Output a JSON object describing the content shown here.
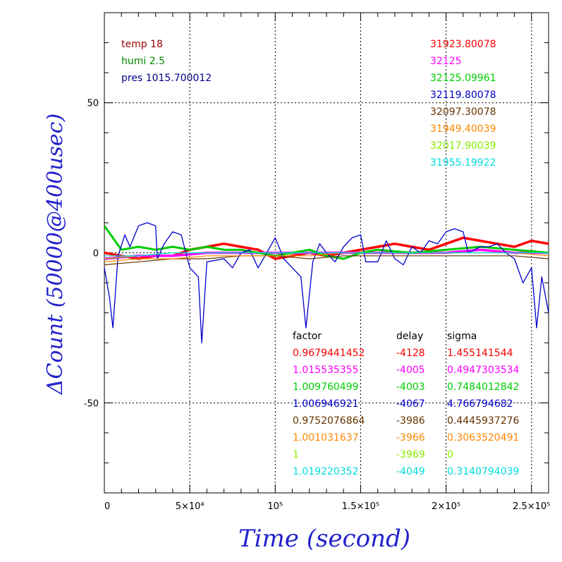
{
  "chart_data": {
    "type": "line",
    "xlabel": "Time (second)",
    "ylabel": "ΔCount (50000@400usec)",
    "xlim": [
      0,
      260000
    ],
    "ylim": [
      -80,
      80
    ],
    "x_ticks": [
      {
        "value": 0,
        "label": "0"
      },
      {
        "value": 50000,
        "label": "5×10⁴"
      },
      {
        "value": 100000,
        "label": "10⁵"
      },
      {
        "value": 150000,
        "label": "1.5×10⁵"
      },
      {
        "value": 200000,
        "label": "2×10⁵"
      },
      {
        "value": 250000,
        "label": "2.5×10⁵"
      }
    ],
    "y_ticks": [
      {
        "value": 50,
        "label": "50"
      },
      {
        "value": 0,
        "label": "0"
      },
      {
        "value": -50,
        "label": "-50"
      }
    ],
    "grid": true,
    "env": [
      {
        "text": "temp 18",
        "color": "#990000"
      },
      {
        "text": "humi 2.5",
        "color": "#008800"
      },
      {
        "text": "pres 1015.700012",
        "color": "#000088"
      }
    ],
    "series": [
      {
        "name": "31923.80078",
        "color": "#ff0000",
        "factor": "0.9679441452",
        "delay": "-4128",
        "sigma": "1.455141544",
        "values": [
          [
            0,
            0
          ],
          [
            10000,
            -1
          ],
          [
            20000,
            -2
          ],
          [
            30000,
            -1
          ],
          [
            40000,
            -1
          ],
          [
            50000,
            1
          ],
          [
            60000,
            2
          ],
          [
            70000,
            3
          ],
          [
            80000,
            2
          ],
          [
            90000,
            1
          ],
          [
            100000,
            -2
          ],
          [
            110000,
            -1
          ],
          [
            120000,
            0
          ],
          [
            130000,
            -1
          ],
          [
            140000,
            0
          ],
          [
            150000,
            1
          ],
          [
            160000,
            2
          ],
          [
            170000,
            3
          ],
          [
            180000,
            2
          ],
          [
            190000,
            1
          ],
          [
            200000,
            3
          ],
          [
            210000,
            5
          ],
          [
            220000,
            4
          ],
          [
            230000,
            3
          ],
          [
            240000,
            2
          ],
          [
            250000,
            4
          ],
          [
            260000,
            3
          ]
        ]
      },
      {
        "name": "32125",
        "color": "#ff00ff",
        "factor": "1.015535355",
        "delay": "-4005",
        "sigma": "0.4947303534",
        "values": [
          [
            0,
            -2
          ],
          [
            20000,
            -1
          ],
          [
            40000,
            -1
          ],
          [
            60000,
            0
          ],
          [
            80000,
            0
          ],
          [
            100000,
            0
          ],
          [
            120000,
            0
          ],
          [
            140000,
            0
          ],
          [
            160000,
            0
          ],
          [
            180000,
            0
          ],
          [
            200000,
            0
          ],
          [
            220000,
            1
          ],
          [
            240000,
            0
          ],
          [
            260000,
            0
          ]
        ]
      },
      {
        "name": "32125.09961",
        "color": "#00cc00",
        "factor": "1.009760499",
        "delay": "-4003",
        "sigma": "0.7484012842",
        "values": [
          [
            0,
            9
          ],
          [
            10000,
            1
          ],
          [
            20000,
            2
          ],
          [
            30000,
            1
          ],
          [
            40000,
            2
          ],
          [
            50000,
            1
          ],
          [
            60000,
            2
          ],
          [
            70000,
            1
          ],
          [
            80000,
            1
          ],
          [
            90000,
            0
          ],
          [
            100000,
            -1
          ],
          [
            110000,
            0
          ],
          [
            120000,
            1
          ],
          [
            130000,
            -1
          ],
          [
            140000,
            -2
          ],
          [
            150000,
            0
          ],
          [
            160000,
            1
          ],
          [
            180000,
            0
          ],
          [
            200000,
            1
          ],
          [
            220000,
            2
          ],
          [
            240000,
            1
          ],
          [
            260000,
            0
          ]
        ]
      },
      {
        "name": "32119.80078",
        "color": "#0000cc",
        "factor": "1.006946921",
        "delay": "-4067",
        "sigma": "4.766794682",
        "values": [
          [
            0,
            -5
          ],
          [
            3000,
            -15
          ],
          [
            5000,
            -25
          ],
          [
            8000,
            -1
          ],
          [
            12000,
            6
          ],
          [
            15000,
            2
          ],
          [
            20000,
            9
          ],
          [
            25000,
            10
          ],
          [
            30000,
            9
          ],
          [
            31000,
            -2
          ],
          [
            35000,
            3
          ],
          [
            40000,
            7
          ],
          [
            45000,
            6
          ],
          [
            50000,
            -5
          ],
          [
            55000,
            -8
          ],
          [
            57000,
            -30
          ],
          [
            60000,
            -3
          ],
          [
            70000,
            -2
          ],
          [
            75000,
            -5
          ],
          [
            80000,
            0
          ],
          [
            85000,
            1
          ],
          [
            90000,
            -5
          ],
          [
            95000,
            0
          ],
          [
            100000,
            5
          ],
          [
            105000,
            -2
          ],
          [
            110000,
            -5
          ],
          [
            115000,
            -8
          ],
          [
            118000,
            -25
          ],
          [
            122000,
            -3
          ],
          [
            126000,
            3
          ],
          [
            130000,
            0
          ],
          [
            135000,
            -3
          ],
          [
            140000,
            2
          ],
          [
            145000,
            5
          ],
          [
            150000,
            6
          ],
          [
            153000,
            -3
          ],
          [
            160000,
            -3
          ],
          [
            165000,
            4
          ],
          [
            170000,
            -2
          ],
          [
            175000,
            -4
          ],
          [
            180000,
            2
          ],
          [
            185000,
            0
          ],
          [
            190000,
            4
          ],
          [
            195000,
            3
          ],
          [
            200000,
            7
          ],
          [
            205000,
            8
          ],
          [
            210000,
            7
          ],
          [
            213000,
            0
          ],
          [
            220000,
            2
          ],
          [
            225000,
            2
          ],
          [
            230000,
            3
          ],
          [
            235000,
            0
          ],
          [
            240000,
            -2
          ],
          [
            245000,
            -10
          ],
          [
            250000,
            -5
          ],
          [
            253000,
            -25
          ],
          [
            256000,
            -8
          ],
          [
            260000,
            -20
          ]
        ]
      },
      {
        "name": "32097.30078",
        "color": "#663300",
        "factor": "0.9752076864",
        "delay": "-3986",
        "sigma": "0.4445937276",
        "values": [
          [
            0,
            -4
          ],
          [
            20000,
            -3
          ],
          [
            40000,
            -2
          ],
          [
            60000,
            -2
          ],
          [
            80000,
            -1
          ],
          [
            100000,
            -1
          ],
          [
            120000,
            -2
          ],
          [
            140000,
            -1
          ],
          [
            160000,
            -1
          ],
          [
            180000,
            -1
          ],
          [
            200000,
            -1
          ],
          [
            220000,
            -1
          ],
          [
            240000,
            -1
          ],
          [
            260000,
            -2
          ]
        ]
      },
      {
        "name": "31949.40039",
        "color": "#ff8800",
        "factor": "1.001031637",
        "delay": "-3966",
        "sigma": "0.3063520491",
        "values": [
          [
            0,
            -3
          ],
          [
            20000,
            -2
          ],
          [
            40000,
            -2
          ],
          [
            60000,
            -1
          ],
          [
            80000,
            -1
          ],
          [
            100000,
            -1
          ],
          [
            120000,
            -1
          ],
          [
            140000,
            0
          ],
          [
            160000,
            0
          ],
          [
            180000,
            0
          ],
          [
            200000,
            0
          ],
          [
            220000,
            0
          ],
          [
            240000,
            0
          ],
          [
            260000,
            -1
          ]
        ]
      },
      {
        "name": "32017.90039",
        "color": "#88ee00",
        "factor": "1",
        "delay": "-3969",
        "sigma": "0",
        "values": [
          [
            0,
            -2
          ],
          [
            20000,
            -1
          ],
          [
            40000,
            0
          ],
          [
            60000,
            0
          ],
          [
            80000,
            0
          ],
          [
            100000,
            0
          ],
          [
            120000,
            0
          ],
          [
            140000,
            0
          ],
          [
            160000,
            0
          ],
          [
            180000,
            0
          ],
          [
            200000,
            0
          ],
          [
            220000,
            0
          ],
          [
            240000,
            0
          ],
          [
            260000,
            0
          ]
        ]
      },
      {
        "name": "31955.19922",
        "color": "#00dddd",
        "factor": "1.019220352",
        "delay": "-4049",
        "sigma": "0.3140794039",
        "values": [
          [
            0,
            -1
          ],
          [
            20000,
            -1
          ],
          [
            40000,
            0
          ],
          [
            60000,
            0
          ],
          [
            80000,
            0
          ],
          [
            100000,
            0
          ],
          [
            120000,
            0
          ],
          [
            140000,
            0
          ],
          [
            160000,
            0
          ],
          [
            180000,
            0
          ],
          [
            200000,
            0
          ],
          [
            220000,
            0
          ],
          [
            240000,
            0
          ],
          [
            260000,
            0
          ]
        ]
      }
    ],
    "table_headers": {
      "factor": "factor",
      "delay": "delay",
      "sigma": "sigma"
    }
  }
}
